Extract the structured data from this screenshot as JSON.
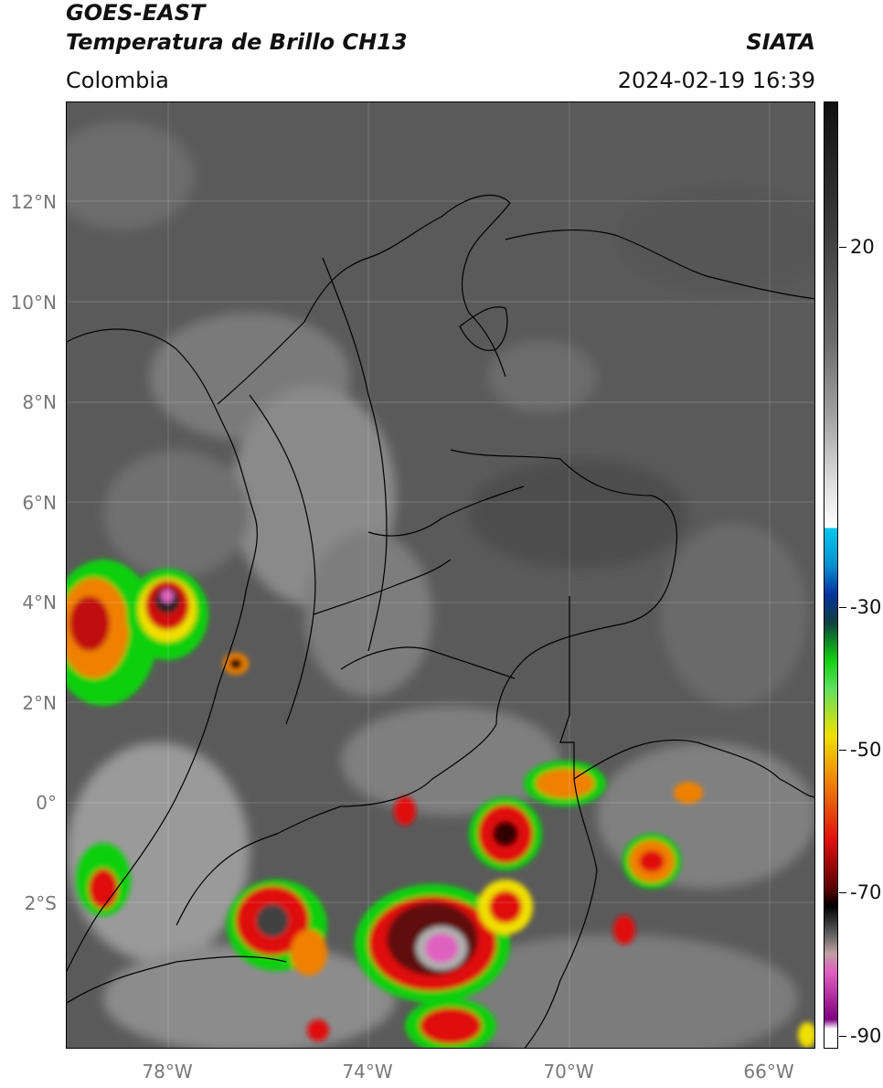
{
  "header": {
    "title_line1": "GOES-EAST",
    "title_line2": "Temperatura de Brillo CH13",
    "source": "SIATA",
    "region": "Colombia",
    "datetime": "2024-02-19 16:39"
  },
  "axes": {
    "lat_labels": [
      "12°N",
      "10°N",
      "8°N",
      "6°N",
      "4°N",
      "2°N",
      "0°",
      "2°S"
    ],
    "lon_labels": [
      "78°W",
      "74°W",
      "70°W",
      "66°W"
    ]
  },
  "colorbar": {
    "tick_labels": [
      "20",
      "-30",
      "-50",
      "-70",
      "-90"
    ],
    "colors": {
      "cyan": "#00c8f0",
      "blue": "#0032a0",
      "green": "#10d010",
      "yellow": "#f0e000",
      "orange": "#f08000",
      "red": "#e01010",
      "dark_red": "#600000",
      "black": "#000000",
      "pink": "#e060c0",
      "purple": "#800080"
    }
  }
}
